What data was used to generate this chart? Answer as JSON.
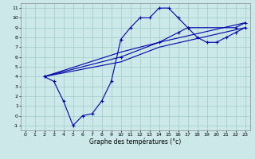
{
  "xlabel": "Graphe des températures (°c)",
  "bg_color": "#cce8e8",
  "grid_color": "#99cccc",
  "line_color": "#0000aa",
  "xlim": [
    -0.5,
    23.5
  ],
  "ylim": [
    -1.5,
    11.5
  ],
  "xticks": [
    0,
    1,
    2,
    3,
    4,
    5,
    6,
    7,
    8,
    9,
    10,
    11,
    12,
    13,
    14,
    15,
    16,
    17,
    18,
    19,
    20,
    21,
    22,
    23
  ],
  "yticks": [
    -1,
    0,
    1,
    2,
    3,
    4,
    5,
    6,
    7,
    8,
    9,
    10,
    11
  ],
  "series1_x": [
    2,
    3,
    4,
    5,
    6,
    7,
    8,
    9,
    10,
    11,
    12,
    13,
    14,
    15,
    16,
    17,
    22,
    23
  ],
  "series1_y": [
    4.0,
    3.5,
    1.5,
    -1.0,
    0.0,
    0.2,
    1.5,
    3.5,
    7.8,
    9.0,
    10.0,
    10.0,
    11.0,
    11.0,
    10.0,
    9.0,
    9.0,
    9.5
  ],
  "series2_x": [
    2,
    10,
    14,
    16,
    17,
    18,
    19,
    20,
    21,
    22,
    23
  ],
  "series2_y": [
    4.0,
    6.0,
    7.5,
    8.5,
    9.0,
    8.0,
    7.5,
    7.5,
    8.0,
    8.5,
    9.0
  ],
  "series3_x": [
    2,
    10,
    14,
    23
  ],
  "series3_y": [
    4.0,
    5.5,
    7.0,
    9.0
  ],
  "series4_x": [
    2,
    10,
    14,
    23
  ],
  "series4_y": [
    4.0,
    6.5,
    7.5,
    9.5
  ]
}
